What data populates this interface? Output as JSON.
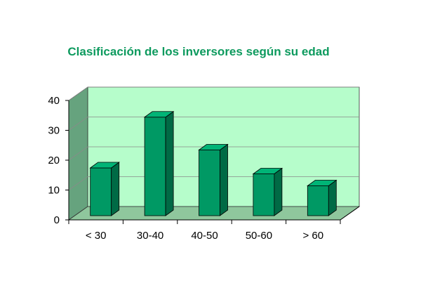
{
  "colors": {
    "back_wall": "#b6fdcb",
    "side_wall": "#66a37e",
    "floor": "#8fc79d",
    "bar_front": "#009964",
    "bar_top": "#00b476",
    "bar_side": "#006a45",
    "title": "#0d9a5e"
  },
  "chart_data": {
    "type": "bar",
    "title": "Clasificación de los inversores según su edad",
    "categories": [
      "< 30",
      "30-40",
      "40-50",
      "50-60",
      "> 60"
    ],
    "values": [
      16,
      33,
      22,
      14,
      10
    ],
    "ylim": [
      0,
      40
    ],
    "yticks": [
      "0",
      "10",
      "20",
      "30",
      "40"
    ],
    "xlabel": "",
    "ylabel": "",
    "grid": true,
    "style": "3d"
  }
}
